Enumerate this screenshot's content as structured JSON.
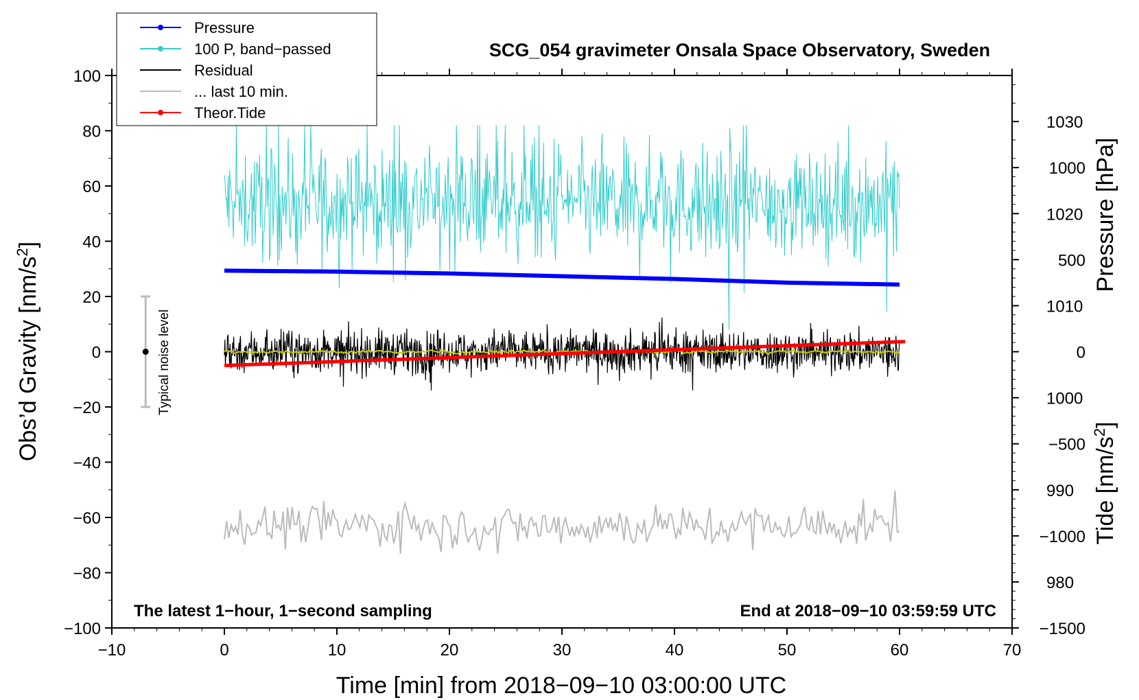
{
  "chart_data": {
    "type": "line",
    "title": "SCG_054 gravimeter Onsala Space Observatory, Sweden",
    "xlabel": "Time [min] from 2018−09−10 03:00:00 UTC",
    "ylabel_left": "Obs’d Gravity [nm/s",
    "ylabel_left_sup": "2",
    "ylabel_left_tail": "]",
    "ylabel_right_top": "Pressure [hPa]",
    "ylabel_right_bottom": "Tide [nm/s",
    "ylabel_right_bottom_sup": "2",
    "ylabel_right_bottom_tail": "]",
    "xlim": [
      -10,
      70
    ],
    "ylim": [
      -100,
      100
    ],
    "pressure_lim": [
      975,
      1035
    ],
    "tide_lim": [
      -1500,
      1500
    ],
    "x_ticks": [
      "−10",
      "0",
      "10",
      "20",
      "30",
      "40",
      "50",
      "60",
      "70"
    ],
    "x_tick_values": [
      -10,
      0,
      10,
      20,
      30,
      40,
      50,
      60,
      70
    ],
    "y_ticks": [
      "−100",
      "−80",
      "−60",
      "−40",
      "−20",
      "0",
      "20",
      "40",
      "60",
      "80",
      "100"
    ],
    "y_tick_values": [
      -100,
      -80,
      -60,
      -40,
      -20,
      0,
      20,
      40,
      60,
      80,
      100
    ],
    "pressure_ticks": [
      "980",
      "990",
      "1000",
      "1010",
      "1020",
      "1030"
    ],
    "pressure_tick_values": [
      980,
      990,
      1000,
      1010,
      1020,
      1030
    ],
    "tide_ticks": [
      "−1500",
      "−1000",
      "−500",
      "0",
      "500",
      "1000"
    ],
    "tide_tick_values": [
      -1500,
      -1000,
      -500,
      0,
      500,
      1000
    ],
    "annotations": {
      "bottom_left": "The latest 1−hour, 1−second sampling",
      "bottom_right": "End at 2018−09−10 03:59:59 UTC",
      "noise_label": "Typical noise level"
    },
    "noise_bar": {
      "x": -7,
      "center": 0,
      "half_range": 20
    },
    "legend": {
      "placement": "top-left",
      "entries": [
        {
          "label": "Pressure",
          "color": "#0000ff",
          "marker": true
        },
        {
          "label": "100 P, band−passed",
          "color": "#33cccc",
          "marker": true
        },
        {
          "label": "Residual",
          "color": "#000000",
          "marker": false
        },
        {
          "label": "... last 10 min.",
          "color": "#bbbbbb",
          "marker": false
        },
        {
          "label": "Theor.Tide",
          "color": "#ff0000",
          "marker": true
        }
      ]
    },
    "series": [
      {
        "name": "Pressure",
        "axis": "pressure",
        "color": "#0000ff",
        "x": [
          0,
          10,
          20,
          30,
          40,
          50,
          60
        ],
        "values": [
          1013.8,
          1013.7,
          1013.5,
          1013.2,
          1012.9,
          1012.5,
          1012.3
        ]
      },
      {
        "name": "100 P, band−passed",
        "axis": "gravity",
        "color": "#33cccc",
        "x_range": [
          0,
          60
        ],
        "center": 54,
        "amplitude": 18,
        "min": 5,
        "max": 82
      },
      {
        "name": "Residual",
        "axis": "gravity",
        "color": "#000000",
        "x_range": [
          0,
          60
        ],
        "center": 0,
        "amplitude": 7,
        "min": -14,
        "max": 18
      },
      {
        "name": "... last 10 min.",
        "axis": "gravity",
        "color": "#bbbbbb",
        "x_range": [
          0,
          60
        ],
        "center": -63,
        "amplitude": 7,
        "min": -76,
        "max": -48
      },
      {
        "name": "Theor.Tide",
        "axis": "tide",
        "color": "#ff0000",
        "x": [
          0,
          60.5
        ],
        "values": [
          -75,
          55
        ]
      },
      {
        "name": "Residual smoothed",
        "axis": "gravity",
        "color": "#cccc00",
        "x_range": [
          0,
          60
        ],
        "center": 0,
        "amplitude": 1
      }
    ]
  }
}
